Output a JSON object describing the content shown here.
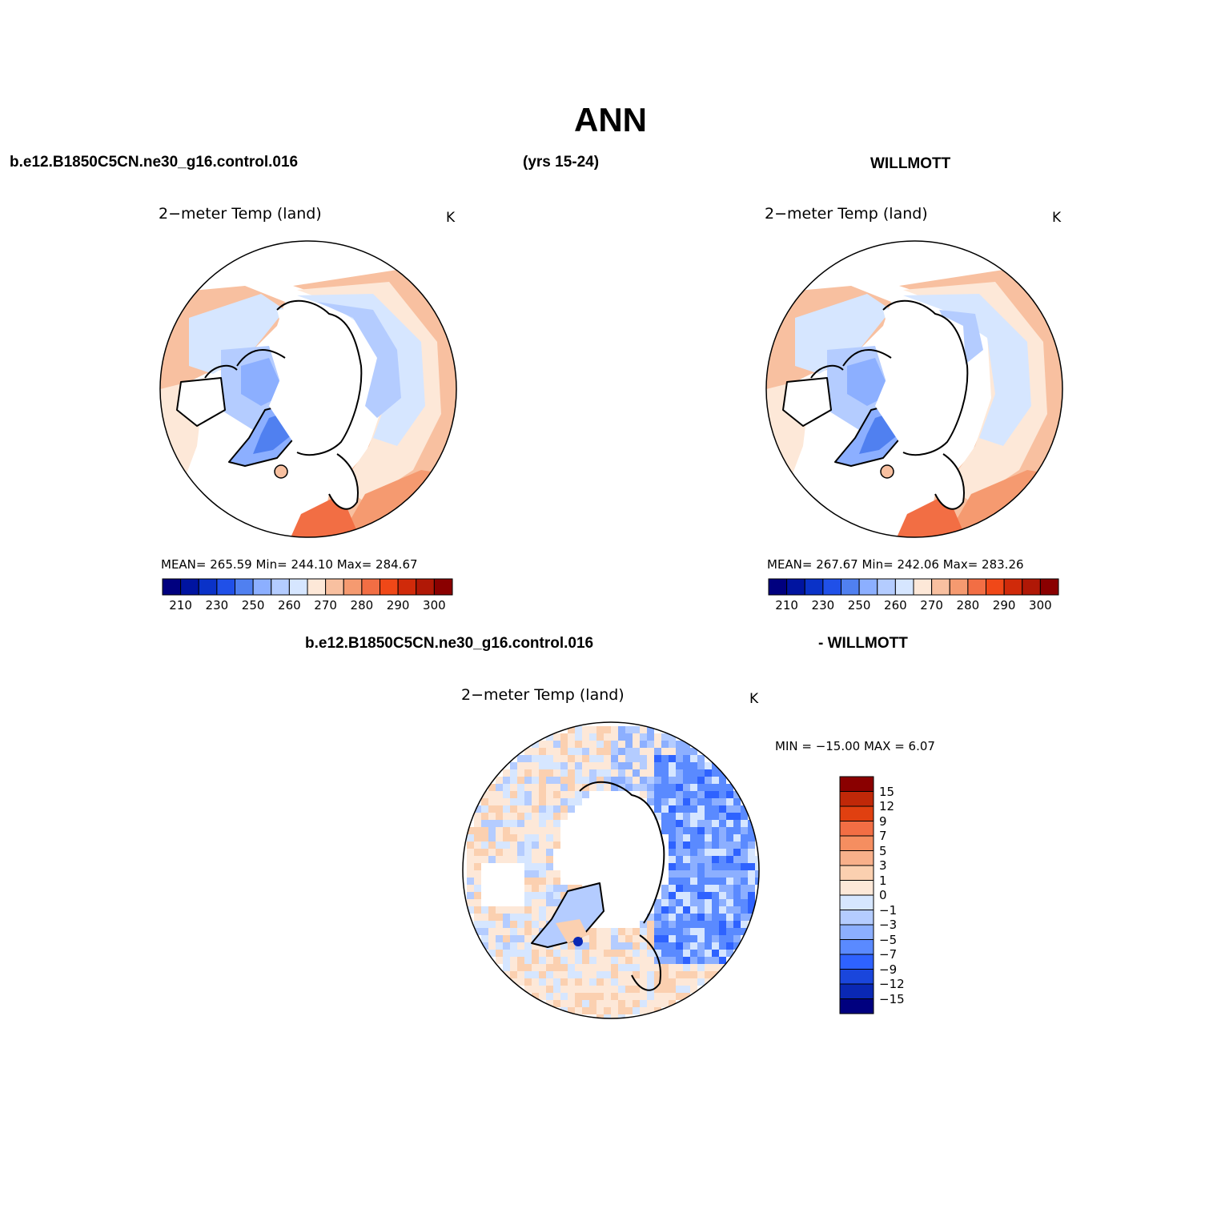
{
  "figure": {
    "title": "ANN",
    "case_name": "b.e12.B1850C5CN.ne30_g16.control.016",
    "years": "(yrs 15-24)",
    "reference": "WILLMOTT",
    "diff_case": "b.e12.B1850C5CN.ne30_g16.control.016",
    "diff_reference": "- WILLMOTT"
  },
  "colors": {
    "abs_levels": [
      "#00007f",
      "#0014a0",
      "#0a32c8",
      "#2050e8",
      "#5080f0",
      "#8cafff",
      "#b4ccff",
      "#d6e6ff",
      "#fde8d8",
      "#f8c0a0",
      "#f59a70",
      "#f26e44",
      "#f04818",
      "#d02a0a",
      "#b01806",
      "#8a0000"
    ],
    "diff_levels": [
      "#00007f",
      "#0a28b4",
      "#1a46dc",
      "#2e62ff",
      "#5a8aff",
      "#8cafff",
      "#b4ccff",
      "#d6e6ff",
      "#fde8d8",
      "#fbd0b0",
      "#f8b08a",
      "#f58e60",
      "#f26e44",
      "#e04010",
      "#c02808",
      "#8a0000"
    ],
    "land_outline": "#000000"
  },
  "panels": [
    {
      "id": "model",
      "title": "2−meter Temp (land)",
      "units": "K",
      "stats": "MEAN= 265.59   Min= 244.10   Max= 284.67"
    },
    {
      "id": "obs",
      "title": "2−meter Temp (land)",
      "units": "K",
      "stats": "MEAN= 267.67   Min= 242.06   Max= 283.26"
    },
    {
      "id": "diff",
      "title": "2−meter Temp (land)",
      "units": "K",
      "minmax": "MIN = −15.00 MAX =    6.07"
    }
  ],
  "abs_colorbar": {
    "labels": [
      "210",
      "230",
      "250",
      "260",
      "270",
      "280",
      "290",
      "300"
    ]
  },
  "diff_colorbar": {
    "labels": [
      "15",
      "12",
      "9",
      "7",
      "5",
      "3",
      "1",
      "0",
      "−1",
      "−3",
      "−5",
      "−7",
      "−9",
      "−12",
      "−15"
    ]
  }
}
